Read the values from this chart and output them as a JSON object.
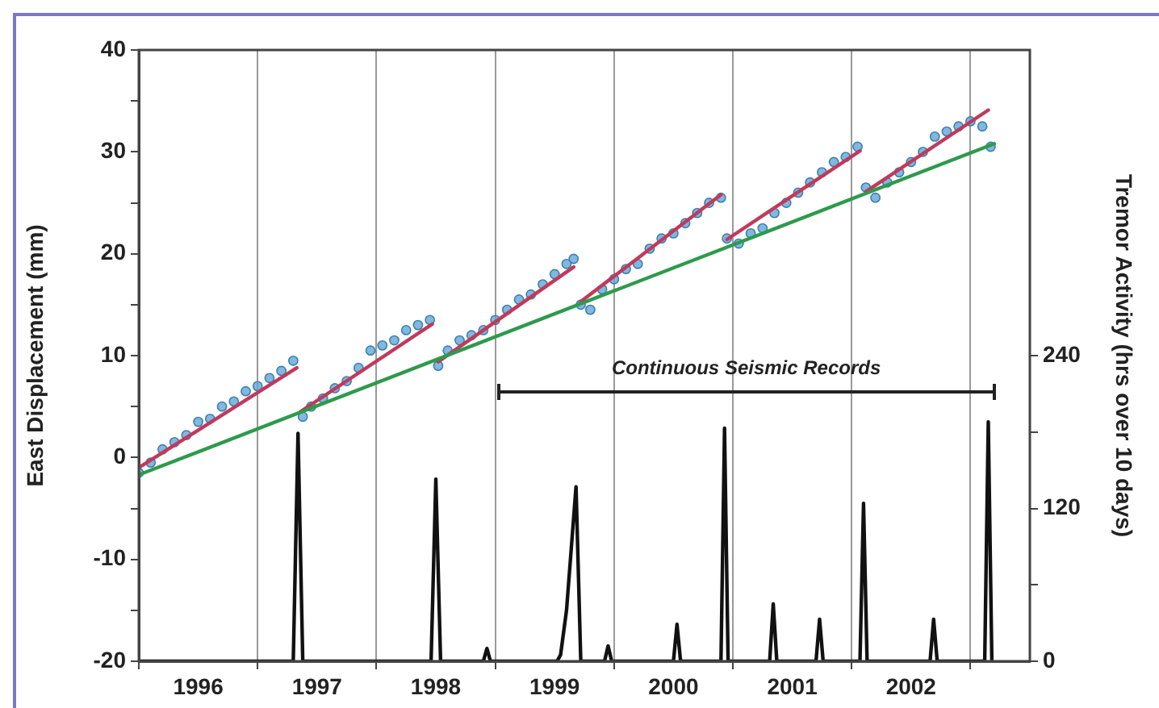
{
  "chart_data": {
    "type": "scatter",
    "ylabel": "East Displacement (mm)",
    "y2label": "Tremor Activity (hrs over 10 days)",
    "annotations": [
      "Continuous Seismic Records"
    ],
    "xlim": [
      1996,
      2003.5
    ],
    "xticks": [
      {
        "value": 1996,
        "label": null
      },
      {
        "value": 1996.5,
        "label": "1996"
      },
      {
        "value": 1997,
        "label": null
      },
      {
        "value": 1997.5,
        "label": "1997"
      },
      {
        "value": 1998,
        "label": null
      },
      {
        "value": 1998.5,
        "label": "1998"
      },
      {
        "value": 1999,
        "label": null
      },
      {
        "value": 1999.5,
        "label": "1999"
      },
      {
        "value": 2000,
        "label": null
      },
      {
        "value": 2000.5,
        "label": "2000"
      },
      {
        "value": 2001,
        "label": null
      },
      {
        "value": 2001.5,
        "label": "2001"
      },
      {
        "value": 2002,
        "label": null
      },
      {
        "value": 2002.5,
        "label": "2002"
      },
      {
        "value": 2003,
        "label": null
      }
    ],
    "ylim": [
      -20,
      40
    ],
    "yticks": [
      -20,
      {
        "value": -15,
        "label": null
      },
      -10,
      {
        "value": -5,
        "label": null
      },
      0,
      {
        "value": 5,
        "label": null
      },
      10,
      {
        "value": 15,
        "label": null
      },
      20,
      {
        "value": 25,
        "label": null
      },
      30,
      {
        "value": 35,
        "label": null
      },
      40
    ],
    "y2lim": [
      0,
      480
    ],
    "y2ticks": [
      0,
      {
        "value": 60,
        "label": null
      },
      120,
      {
        "value": 180,
        "label": null
      },
      240
    ],
    "grid": "x",
    "legend": false,
    "series": [
      {
        "marker": "circle",
        "color": "#5fa8d8",
        "x": [
          1996.0,
          1996.1,
          1996.2,
          1996.3,
          1996.4,
          1996.5,
          1996.6,
          1996.7,
          1996.8,
          1996.9,
          1997.0,
          1997.1,
          1997.2,
          1997.3,
          1997.38,
          1997.45,
          1997.55,
          1997.65,
          1997.75,
          1997.85,
          1997.95,
          1998.05,
          1998.15,
          1998.25,
          1998.35,
          1998.45,
          1998.52,
          1998.6,
          1998.7,
          1998.8,
          1998.9,
          1999.0,
          1999.1,
          1999.2,
          1999.3,
          1999.4,
          1999.5,
          1999.6,
          1999.66,
          1999.72,
          1999.8,
          1999.9,
          2000.0,
          2000.1,
          2000.2,
          2000.3,
          2000.4,
          2000.5,
          2000.6,
          2000.7,
          2000.8,
          2000.9,
          2000.95,
          2001.05,
          2001.15,
          2001.25,
          2001.35,
          2001.45,
          2001.55,
          2001.65,
          2001.75,
          2001.85,
          2001.95,
          2002.05,
          2002.12,
          2002.2,
          2002.3,
          2002.4,
          2002.5,
          2002.6,
          2002.7,
          2002.8,
          2002.9,
          2003.0,
          2003.1,
          2003.17
        ],
        "values": [
          -1.5,
          -0.5,
          0.8,
          1.5,
          2.2,
          3.5,
          3.8,
          5.0,
          5.5,
          6.5,
          7.0,
          7.8,
          8.5,
          9.5,
          4.0,
          5.0,
          5.8,
          6.8,
          7.5,
          8.8,
          10.5,
          11.0,
          11.5,
          12.5,
          13.0,
          13.5,
          9.0,
          10.5,
          11.5,
          12.0,
          12.5,
          13.5,
          14.5,
          15.5,
          16.0,
          17.0,
          18.0,
          19.0,
          19.5,
          15.0,
          14.5,
          16.5,
          17.5,
          18.5,
          19.0,
          20.5,
          21.5,
          22.0,
          23.0,
          24.0,
          25.0,
          25.5,
          21.5,
          21.0,
          22.0,
          22.5,
          24.0,
          25.0,
          26.0,
          27.0,
          28.0,
          29.0,
          29.5,
          30.5,
          26.5,
          25.5,
          27.0,
          28.0,
          29.0,
          30.0,
          31.5,
          32.0,
          32.5,
          33.0,
          32.5,
          30.5
        ]
      },
      {
        "type": "line",
        "marker": "none",
        "color": "#2e9a4c",
        "x": [
          1996.0,
          2003.2
        ],
        "values": [
          -1.7,
          30.8
        ]
      },
      {
        "type": "line",
        "marker": "none",
        "color": "#c03a5c",
        "x": [
          1996.0,
          1997.33,
          1997.34,
          1997.36,
          1998.47,
          1998.48,
          1998.52,
          1999.66,
          1999.68,
          1999.72,
          2000.9,
          2000.92,
          2000.95,
          2002.07,
          2002.09,
          2002.12,
          2003.15
        ],
        "values": [
          -1,
          8.8,
          null,
          4.5,
          13.1,
          null,
          9.4,
          18.7,
          null,
          15.3,
          25.8,
          null,
          21.4,
          30.1,
          null,
          26.1,
          34.1
        ]
      },
      {
        "type": "line",
        "marker": "none",
        "color": "#111111",
        "axis": "y2",
        "x": [
          1996.0,
          1997.3,
          1997.34,
          1997.38,
          1998.46,
          1998.5,
          1998.54,
          1998.9,
          1998.93,
          1998.96,
          1999.52,
          1999.55,
          1999.6,
          1999.68,
          1999.72,
          1999.92,
          1999.95,
          1999.98,
          2000.5,
          2000.53,
          2000.56,
          2000.9,
          2000.93,
          2000.96,
          2001.31,
          2001.34,
          2001.37,
          2001.7,
          2001.73,
          2001.76,
          2002.07,
          2002.1,
          2002.13,
          2002.66,
          2002.69,
          2002.72,
          2003.12,
          2003.15,
          2003.18
        ],
        "values": [
          0,
          0,
          179,
          0,
          0,
          143,
          0,
          0,
          10,
          0,
          0,
          5,
          40,
          137,
          0,
          0,
          12,
          0,
          0,
          29,
          0,
          0,
          183,
          0,
          0,
          45,
          0,
          0,
          33,
          0,
          0,
          124,
          0,
          0,
          33,
          0,
          0,
          188,
          0
        ]
      }
    ]
  }
}
